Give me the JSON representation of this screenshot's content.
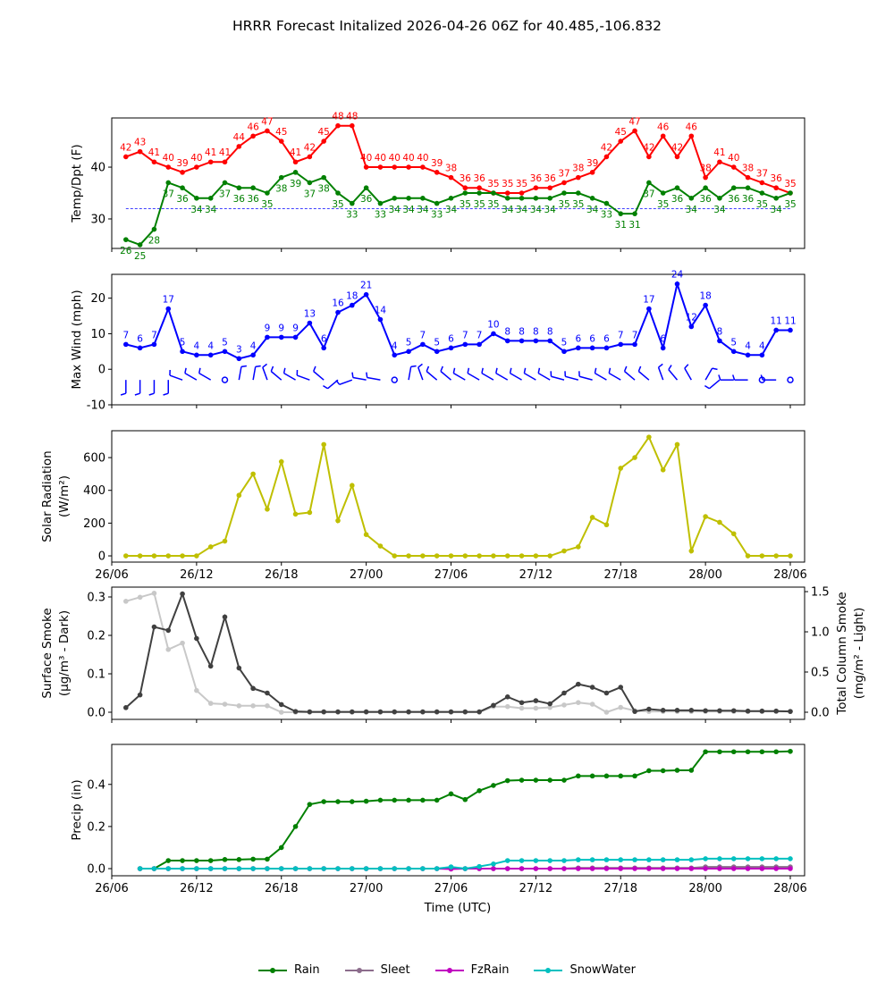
{
  "title": "HRRR Forecast Initalized 2026-04-26 06Z for 40.485,-106.832",
  "xlabel": "Time (UTC)",
  "xticks": [
    {
      "hour": 0,
      "label": "26/06"
    },
    {
      "hour": 6,
      "label": "26/12"
    },
    {
      "hour": 12,
      "label": "26/18"
    },
    {
      "hour": 18,
      "label": "27/00"
    },
    {
      "hour": 24,
      "label": "27/06"
    },
    {
      "hour": 30,
      "label": "27/12"
    },
    {
      "hour": 36,
      "label": "27/18"
    },
    {
      "hour": 42,
      "label": "28/00"
    },
    {
      "hour": 48,
      "label": "28/06"
    }
  ],
  "legend": [
    {
      "label": "Rain",
      "color": "#008000"
    },
    {
      "label": "Sleet",
      "color": "#8c6c8c"
    },
    {
      "label": "FzRain",
      "color": "#c000c0"
    },
    {
      "label": "SnowWater",
      "color": "#00c0c0"
    }
  ],
  "chart_data": [
    {
      "type": "line",
      "ylabel": [
        "Temp/Dpt (F)"
      ],
      "ylim": [
        24.3,
        49.5
      ],
      "yticks": [
        30,
        40
      ],
      "x_start_hour": 1,
      "reference_line": {
        "value": 32,
        "color": "#0000ff"
      },
      "series": [
        {
          "name": "Temp",
          "color": "#ff0000",
          "labels": "above",
          "values": [
            42,
            43,
            41,
            40,
            39,
            40,
            41,
            41,
            44,
            46,
            47,
            45,
            41,
            42,
            45,
            48,
            48,
            40,
            40,
            40,
            40,
            40,
            39,
            38,
            36,
            36,
            35,
            35,
            35,
            36,
            36,
            37,
            38,
            39,
            42,
            45,
            47,
            42,
            46,
            42,
            46,
            38,
            41,
            40,
            38,
            37,
            36,
            35
          ]
        },
        {
          "name": "Dewpoint",
          "color": "#008000",
          "labels": "below",
          "values": [
            26,
            25,
            28,
            37,
            36,
            34,
            34,
            37,
            36,
            36,
            35,
            38,
            39,
            37,
            38,
            35,
            33,
            36,
            33,
            34,
            34,
            34,
            33,
            34,
            35,
            35,
            35,
            34,
            34,
            34,
            34,
            35,
            35,
            34,
            33,
            31,
            31,
            37,
            35,
            36,
            34,
            36,
            34,
            36,
            36,
            35,
            34,
            35
          ]
        }
      ]
    },
    {
      "type": "line",
      "ylabel": [
        "Max Wind (mph)"
      ],
      "ylim": [
        -10,
        26.7
      ],
      "yticks": [
        -10,
        0,
        10,
        20
      ],
      "x_start_hour": 1,
      "series": [
        {
          "name": "Max Wind",
          "color": "#0000ff",
          "labels": "above",
          "values": [
            7,
            6,
            7,
            17,
            5,
            4,
            4,
            5,
            3,
            4,
            9,
            9,
            9,
            13,
            6,
            16,
            18,
            21,
            14,
            4,
            5,
            7,
            5,
            6,
            7,
            7,
            10,
            8,
            8,
            8,
            8,
            5,
            6,
            6,
            6,
            7,
            7,
            17,
            6,
            24,
            12,
            18,
            8,
            5,
            4,
            4,
            11,
            11
          ]
        }
      ],
      "wind_barbs": {
        "level": -3,
        "direction_deg": [
          180,
          180,
          180,
          180,
          290,
          300,
          300,
          null,
          10,
          10,
          340,
          310,
          300,
          290,
          310,
          230,
          250,
          280,
          280,
          null,
          10,
          340,
          310,
          310,
          300,
          300,
          300,
          300,
          300,
          300,
          300,
          285,
          285,
          285,
          300,
          300,
          310,
          310,
          340,
          320,
          330,
          30,
          230,
          270,
          270,
          null,
          270,
          null
        ]
      }
    },
    {
      "type": "line",
      "ylabel": [
        "Solar Radiation",
        "(W/m²)"
      ],
      "ylim": [
        -38,
        764
      ],
      "yticks": [
        0,
        200,
        400,
        600
      ],
      "x_start_hour": 1,
      "series": [
        {
          "name": "Solar Radiation",
          "color": "#bfbf00",
          "values": [
            0,
            0,
            0,
            0,
            0,
            0,
            55,
            90,
            370,
            500,
            285,
            575,
            255,
            265,
            680,
            215,
            430,
            130,
            60,
            0,
            0,
            0,
            0,
            0,
            0,
            0,
            0,
            0,
            0,
            0,
            0,
            30,
            55,
            235,
            190,
            535,
            600,
            725,
            525,
            680,
            30,
            240,
            205,
            135,
            0,
            0,
            0,
            0
          ]
        }
      ]
    },
    {
      "type": "line",
      "ylabel": [
        "Surface Smoke",
        "(μg/m³ - Dark)"
      ],
      "ylabel_right": [
        "Total Column Smoke",
        "(mg/m² - Light)"
      ],
      "ylim": [
        -0.0186,
        0.3256
      ],
      "yticks": [
        "0.0",
        "0.1",
        "0.2",
        "0.3"
      ],
      "ylim_right": [
        -0.089,
        1.556
      ],
      "yticks_right": [
        "0.0",
        "0.5",
        "1.0",
        "1.5"
      ],
      "x_start_hour": 1,
      "series": [
        {
          "name": "Total Column Smoke",
          "color": "#c8c8c8",
          "axis": "right",
          "values": [
            1.38,
            1.43,
            1.48,
            0.78,
            0.86,
            0.27,
            0.11,
            0.1,
            0.08,
            0.08,
            0.08,
            0.0,
            0.0,
            0,
            0,
            0,
            0,
            0,
            0,
            0,
            0,
            0,
            0,
            0,
            0,
            0,
            0.07,
            0.07,
            0.05,
            0.05,
            0.06,
            0.09,
            0.12,
            0.1,
            0.0,
            0.06,
            0.02,
            0.01,
            0.01,
            0.01,
            0.01,
            0.01,
            0.01,
            0.01,
            0.01,
            0.01,
            0.01,
            0.01
          ]
        },
        {
          "name": "Surface Smoke",
          "color": "#404040",
          "axis": "left",
          "values": [
            0.012,
            0.045,
            0.222,
            0.213,
            0.308,
            0.192,
            0.12,
            0.248,
            0.115,
            0.062,
            0.05,
            0.02,
            0.002,
            0.001,
            0.001,
            0.001,
            0.001,
            0.001,
            0.001,
            0.001,
            0.001,
            0.001,
            0.001,
            0.001,
            0.001,
            0.001,
            0.018,
            0.04,
            0.025,
            0.03,
            0.022,
            0.05,
            0.073,
            0.065,
            0.05,
            0.065,
            0.002,
            0.008,
            0.005,
            0.005,
            0.005,
            0.004,
            0.004,
            0.004,
            0.003,
            0.003,
            0.003,
            0.002
          ]
        }
      ]
    },
    {
      "type": "line",
      "ylabel": [
        "Precip (in)"
      ],
      "ylim": [
        -0.034,
        0.59
      ],
      "yticks": [
        "0.0",
        "0.2",
        "0.4"
      ],
      "x_start_hour": 2,
      "series": [
        {
          "name": "Rain",
          "color": "#008000",
          "values": [
            0,
            0,
            0.038,
            0.038,
            0.038,
            0.038,
            0.043,
            0.043,
            0.045,
            0.045,
            0.1,
            0.2,
            0.305,
            0.318,
            0.318,
            0.318,
            0.32,
            0.325,
            0.325,
            0.325,
            0.325,
            0.325,
            0.355,
            0.328,
            0.37,
            0.395,
            0.418,
            0.42,
            0.42,
            0.42,
            0.42,
            0.44,
            0.44,
            0.44,
            0.44,
            0.44,
            0.465,
            0.465,
            0.467,
            0.467,
            0.555,
            0.555,
            0.555,
            0.555,
            0.555,
            0.555,
            0.557
          ]
        },
        {
          "name": "Sleet",
          "color": "#8c6c8c",
          "values": [
            0,
            0,
            0,
            0,
            0,
            0,
            0,
            0,
            0,
            0,
            0,
            0,
            0,
            0,
            0,
            0,
            0,
            0,
            0,
            0,
            0,
            0,
            0,
            0,
            0,
            0,
            0,
            0,
            0,
            0,
            0,
            0.003,
            0.003,
            0.003,
            0.003,
            0.003,
            0.003,
            0.003,
            0.003,
            0.003,
            0.008,
            0.008,
            0.008,
            0.008,
            0.008,
            0.008,
            0.008
          ]
        },
        {
          "name": "FzRain",
          "color": "#c000c0",
          "values": [
            0,
            0,
            0,
            0,
            0,
            0,
            0,
            0,
            0,
            0,
            0,
            0,
            0,
            0,
            0,
            0,
            0,
            0,
            0,
            0,
            0,
            0,
            -0.002,
            0,
            0,
            0,
            0,
            0,
            0,
            0,
            0,
            0,
            0,
            0,
            0,
            0,
            0,
            0,
            0,
            0,
            0,
            0,
            0,
            0,
            0,
            0,
            0
          ]
        },
        {
          "name": "SnowWater",
          "color": "#00c0c0",
          "values": [
            0,
            0,
            0,
            0,
            0,
            0,
            0,
            0,
            0,
            0,
            0,
            0,
            0,
            0,
            0,
            0,
            0,
            0,
            0,
            0,
            0,
            0,
            0.008,
            0,
            0.01,
            0.022,
            0.038,
            0.038,
            0.038,
            0.038,
            0.038,
            0.042,
            0.042,
            0.042,
            0.042,
            0.042,
            0.042,
            0.042,
            0.042,
            0.042,
            0.047,
            0.047,
            0.047,
            0.047,
            0.047,
            0.047,
            0.047
          ]
        }
      ]
    }
  ]
}
